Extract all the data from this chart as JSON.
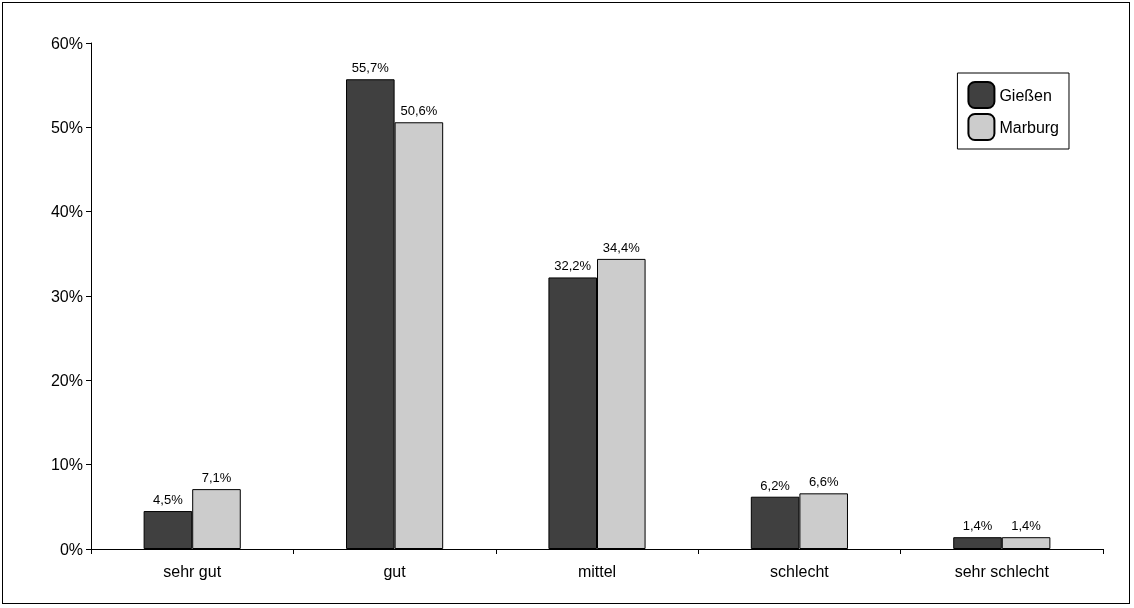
{
  "chart_data": {
    "type": "bar",
    "categories": [
      "sehr gut",
      "gut",
      "mittel",
      "schlecht",
      "sehr schlecht"
    ],
    "series": [
      {
        "name": "Gießen",
        "color": "#404040",
        "values": [
          4.5,
          55.7,
          32.2,
          6.2,
          1.4
        ],
        "value_labels": [
          "4,5%",
          "55,7%",
          "32,2%",
          "6,2%",
          "1,4%"
        ]
      },
      {
        "name": "Marburg",
        "color": "#cccccc",
        "values": [
          7.1,
          50.6,
          34.4,
          6.6,
          1.4
        ],
        "value_labels": [
          "7,1%",
          "50,6%",
          "34,4%",
          "6,6%",
          "1,4%"
        ]
      }
    ],
    "ylim": [
      0,
      60
    ],
    "yticks": [
      {
        "value": 0,
        "label": "0%"
      },
      {
        "value": 10,
        "label": "10%"
      },
      {
        "value": 20,
        "label": "20%"
      },
      {
        "value": 30,
        "label": "30%"
      },
      {
        "value": 40,
        "label": "40%"
      },
      {
        "value": 50,
        "label": "50%"
      },
      {
        "value": 60,
        "label": "60%"
      }
    ],
    "grid": false,
    "legend": "top right"
  }
}
